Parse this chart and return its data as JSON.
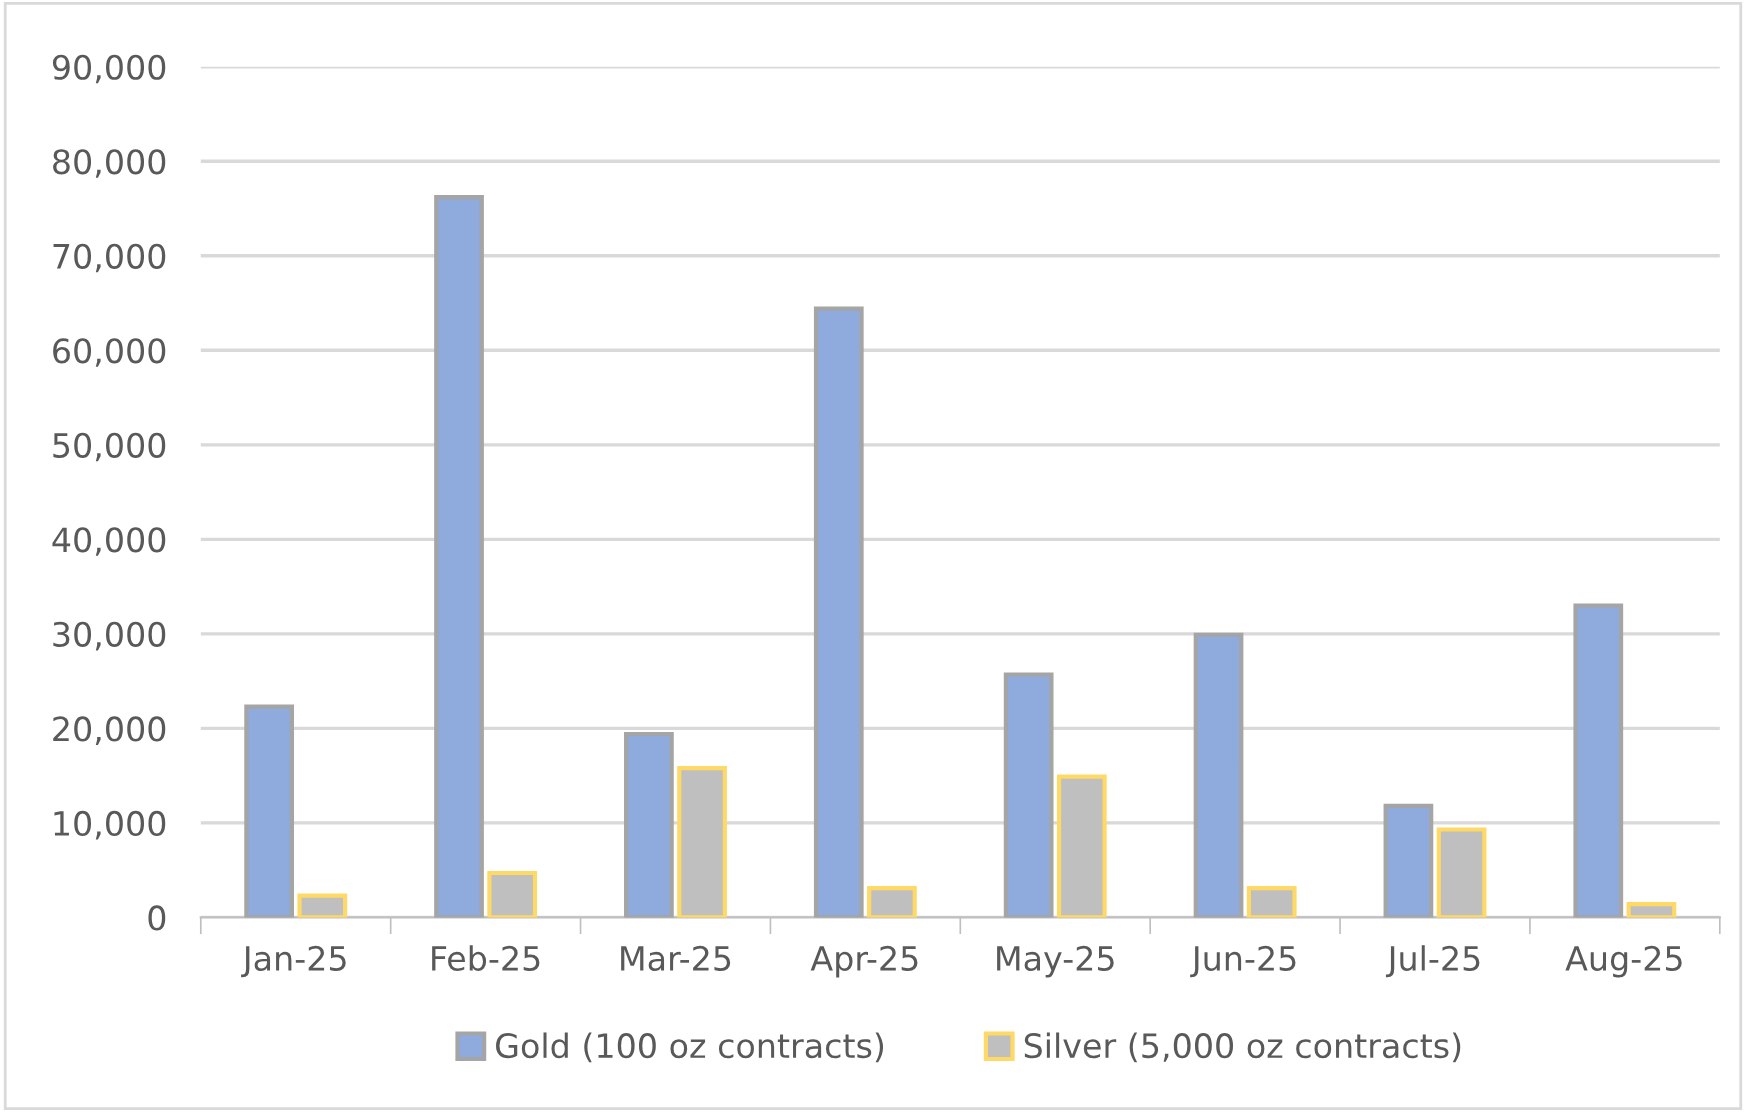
{
  "chart_data": {
    "type": "bar",
    "categories": [
      "Jan-25",
      "Feb-25",
      "Mar-25",
      "Apr-25",
      "May-25",
      "Jun-25",
      "Jul-25",
      "Aug-25"
    ],
    "series": [
      {
        "name": "Gold (100 oz contracts)",
        "color": "#8faadc",
        "values": [
          22300,
          76200,
          19400,
          64400,
          25700,
          29900,
          11800,
          33000
        ]
      },
      {
        "name": "Silver (5,000 oz contracts)",
        "color": "#bfbfbf",
        "values": [
          2300,
          4700,
          15800,
          3100,
          14900,
          3100,
          9300,
          1400
        ]
      }
    ],
    "ylim": [
      0,
      90000
    ],
    "yticks": [
      {
        "value": 0,
        "label": "0"
      },
      {
        "value": 10000,
        "label": "10,000"
      },
      {
        "value": 20000,
        "label": "20,000"
      },
      {
        "value": 30000,
        "label": "30,000"
      },
      {
        "value": 40000,
        "label": "40,000"
      },
      {
        "value": 50000,
        "label": "50,000"
      },
      {
        "value": 60000,
        "label": "60,000"
      },
      {
        "value": 70000,
        "label": "70,000"
      },
      {
        "value": 80000,
        "label": "80,000"
      },
      {
        "value": 90000,
        "label": "90,000"
      }
    ],
    "grid": "y",
    "legend": "bottom"
  }
}
